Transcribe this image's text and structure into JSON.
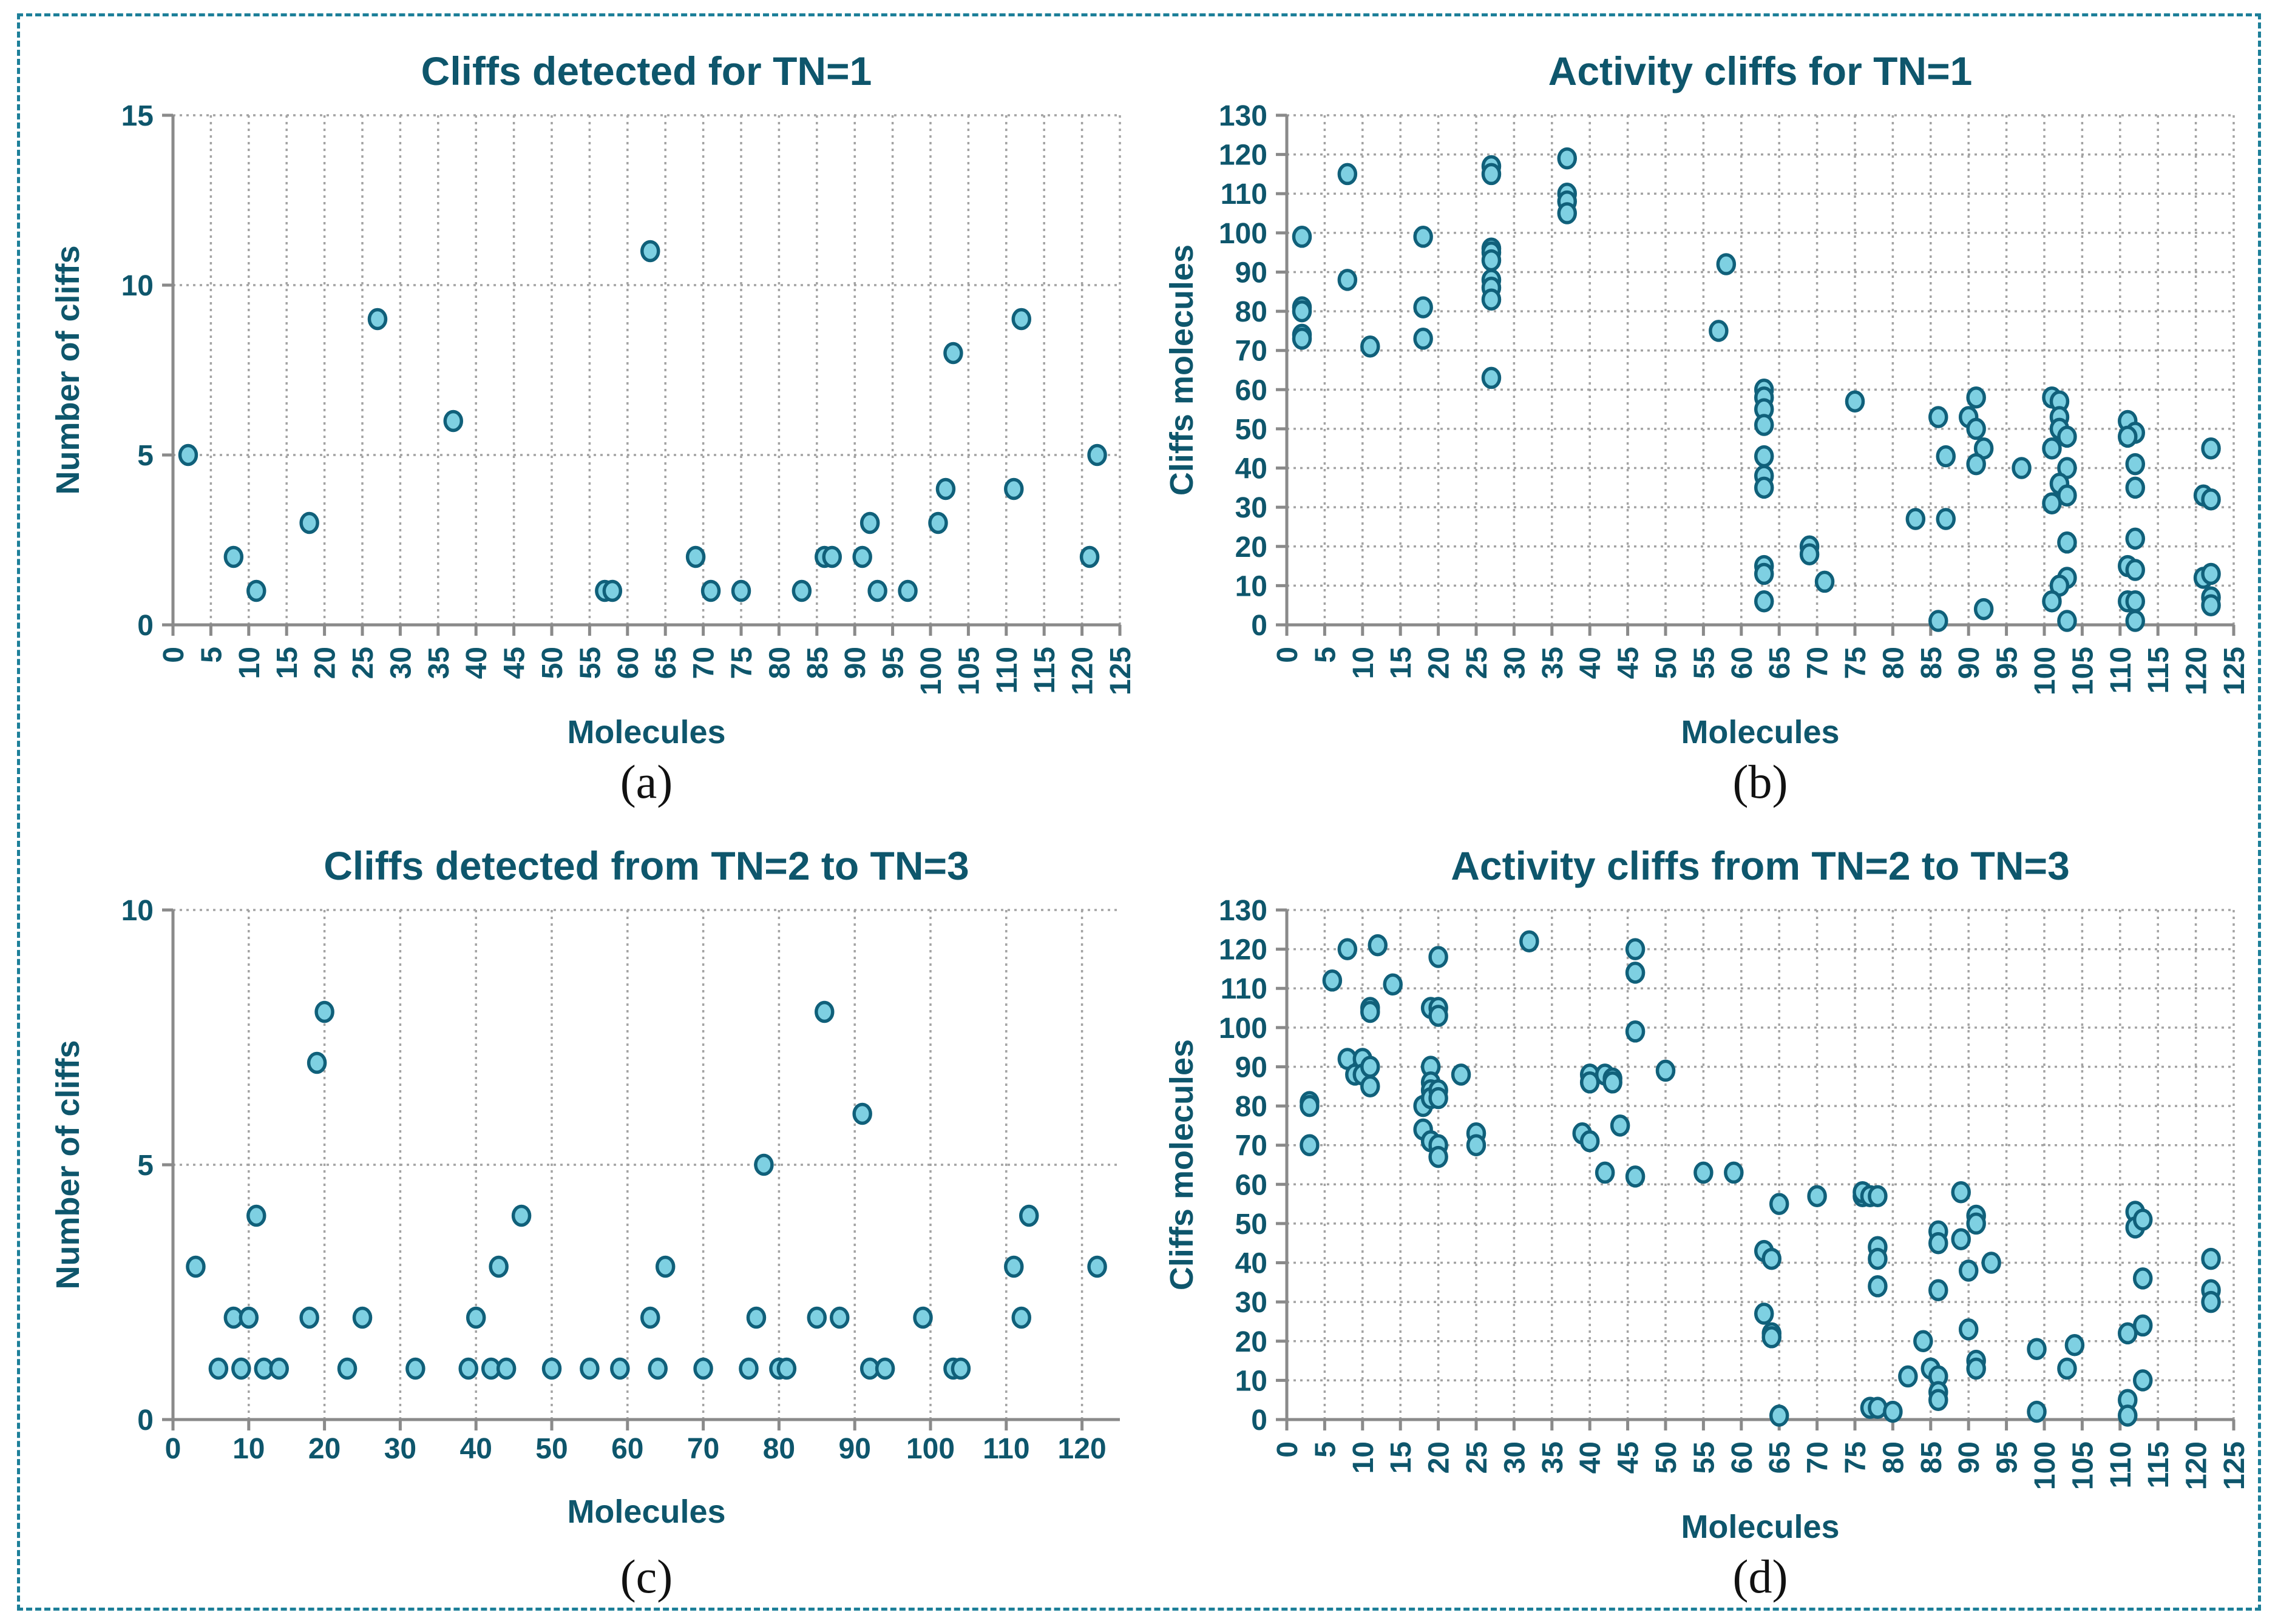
{
  "figure": {
    "border_color": "#1d7f99",
    "background_color": "#ffffff",
    "text_color": "#0e566c",
    "marker_fill": "#7ed0e2",
    "marker_stroke": "#10607a",
    "grid_color": "#a3a3a3",
    "axis_color": "#8a8a8a"
  },
  "chart_data": [
    {
      "type": "scatter",
      "title": "Cliffs detected for TN=1",
      "xlabel": "Molecules",
      "ylabel": "Number of cliffs",
      "caption": "(a)",
      "xlim": [
        0,
        125
      ],
      "ylim": [
        0,
        15
      ],
      "xticks_step": 5,
      "xticks_max": 125,
      "xtick_labels_rotated": true,
      "yticks": [
        0,
        5,
        10,
        15
      ],
      "grid_x_step": 5,
      "grid_y_vals": [
        5,
        10,
        15
      ],
      "grid": "dotted",
      "legend": "none",
      "points": [
        [
          2,
          5
        ],
        [
          8,
          2
        ],
        [
          11,
          1
        ],
        [
          18,
          3
        ],
        [
          27,
          9
        ],
        [
          37,
          6
        ],
        [
          57,
          1
        ],
        [
          58,
          1
        ],
        [
          63,
          11
        ],
        [
          69,
          2
        ],
        [
          71,
          1
        ],
        [
          75,
          1
        ],
        [
          83,
          1
        ],
        [
          86,
          2
        ],
        [
          87,
          2
        ],
        [
          91,
          2
        ],
        [
          92,
          3
        ],
        [
          93,
          1
        ],
        [
          97,
          1
        ],
        [
          101,
          3
        ],
        [
          102,
          4
        ],
        [
          103,
          8
        ],
        [
          111,
          4
        ],
        [
          112,
          9
        ],
        [
          121,
          2
        ],
        [
          122,
          5
        ]
      ]
    },
    {
      "type": "scatter",
      "title": "Activity cliffs for TN=1",
      "xlabel": "Molecules",
      "ylabel": "Cliffs molecules",
      "caption": "(b)",
      "xlim": [
        0,
        125
      ],
      "ylim": [
        0,
        130
      ],
      "xticks_step": 5,
      "xticks_max": 125,
      "xtick_labels_rotated": true,
      "yticks": [
        0,
        10,
        20,
        30,
        40,
        50,
        60,
        70,
        80,
        90,
        100,
        110,
        120,
        130
      ],
      "grid_x_step": 5,
      "grid_y_vals": [
        10,
        20,
        30,
        40,
        50,
        60,
        70,
        80,
        90,
        100,
        110,
        120,
        130
      ],
      "grid": "dotted",
      "legend": "none",
      "points": [
        [
          2,
          99
        ],
        [
          2,
          81
        ],
        [
          2,
          80
        ],
        [
          2,
          74
        ],
        [
          2,
          73
        ],
        [
          8,
          115
        ],
        [
          8,
          88
        ],
        [
          11,
          71
        ],
        [
          18,
          99
        ],
        [
          18,
          81
        ],
        [
          18,
          73
        ],
        [
          27,
          117
        ],
        [
          27,
          115
        ],
        [
          27,
          96
        ],
        [
          27,
          95
        ],
        [
          27,
          93
        ],
        [
          27,
          88
        ],
        [
          27,
          86
        ],
        [
          27,
          83
        ],
        [
          27,
          63
        ],
        [
          37,
          119
        ],
        [
          37,
          110
        ],
        [
          37,
          108
        ],
        [
          37,
          105
        ],
        [
          57,
          75
        ],
        [
          58,
          92
        ],
        [
          63,
          60
        ],
        [
          63,
          58
        ],
        [
          63,
          55
        ],
        [
          63,
          51
        ],
        [
          63,
          43
        ],
        [
          63,
          38
        ],
        [
          63,
          35
        ],
        [
          63,
          15
        ],
        [
          63,
          13
        ],
        [
          63,
          6
        ],
        [
          69,
          20
        ],
        [
          69,
          18
        ],
        [
          71,
          11
        ],
        [
          75,
          57
        ],
        [
          83,
          27
        ],
        [
          86,
          53
        ],
        [
          86,
          1
        ],
        [
          87,
          43
        ],
        [
          87,
          27
        ],
        [
          90,
          53
        ],
        [
          91,
          58
        ],
        [
          91,
          50
        ],
        [
          92,
          45
        ],
        [
          91,
          41
        ],
        [
          92,
          4
        ],
        [
          97,
          40
        ],
        [
          101,
          58
        ],
        [
          102,
          57
        ],
        [
          102,
          53
        ],
        [
          102,
          50
        ],
        [
          103,
          48
        ],
        [
          101,
          45
        ],
        [
          103,
          40
        ],
        [
          102,
          36
        ],
        [
          103,
          33
        ],
        [
          101,
          31
        ],
        [
          103,
          21
        ],
        [
          103,
          12
        ],
        [
          102,
          10
        ],
        [
          101,
          6
        ],
        [
          103,
          1
        ],
        [
          111,
          52
        ],
        [
          112,
          49
        ],
        [
          111,
          48
        ],
        [
          112,
          41
        ],
        [
          112,
          35
        ],
        [
          112,
          22
        ],
        [
          111,
          15
        ],
        [
          112,
          14
        ],
        [
          111,
          6
        ],
        [
          112,
          6
        ],
        [
          112,
          1
        ],
        [
          122,
          45
        ],
        [
          121,
          33
        ],
        [
          122,
          32
        ],
        [
          121,
          12
        ],
        [
          122,
          13
        ],
        [
          122,
          7
        ],
        [
          122,
          5
        ]
      ]
    },
    {
      "type": "scatter",
      "title": "Cliffs detected from TN=2 to TN=3",
      "xlabel": "Molecules",
      "ylabel": "Number of cliffs",
      "caption": "(c)",
      "xlim": [
        0,
        125
      ],
      "ylim": [
        0,
        10
      ],
      "xticks_step": 10,
      "xticks_max": 120,
      "xtick_labels_rotated": false,
      "yticks": [
        0,
        5,
        10
      ],
      "grid_x_step": 10,
      "grid_y_vals": [
        5,
        10
      ],
      "grid": "dotted",
      "legend": "none",
      "points": [
        [
          3,
          3
        ],
        [
          6,
          1
        ],
        [
          8,
          2
        ],
        [
          9,
          1
        ],
        [
          10,
          2
        ],
        [
          11,
          4
        ],
        [
          12,
          1
        ],
        [
          14,
          1
        ],
        [
          18,
          2
        ],
        [
          19,
          7
        ],
        [
          20,
          8
        ],
        [
          23,
          1
        ],
        [
          25,
          2
        ],
        [
          32,
          1
        ],
        [
          39,
          1
        ],
        [
          40,
          2
        ],
        [
          42,
          1
        ],
        [
          43,
          3
        ],
        [
          44,
          1
        ],
        [
          46,
          4
        ],
        [
          50,
          1
        ],
        [
          55,
          1
        ],
        [
          59,
          1
        ],
        [
          63,
          2
        ],
        [
          64,
          1
        ],
        [
          65,
          3
        ],
        [
          70,
          1
        ],
        [
          76,
          1
        ],
        [
          77,
          2
        ],
        [
          78,
          5
        ],
        [
          80,
          1
        ],
        [
          81,
          1
        ],
        [
          85,
          2
        ],
        [
          86,
          8
        ],
        [
          88,
          2
        ],
        [
          91,
          6
        ],
        [
          92,
          1
        ],
        [
          94,
          1
        ],
        [
          99,
          2
        ],
        [
          103,
          1
        ],
        [
          104,
          1
        ],
        [
          111,
          3
        ],
        [
          112,
          2
        ],
        [
          113,
          4
        ],
        [
          122,
          3
        ]
      ]
    },
    {
      "type": "scatter",
      "title": "Activity cliffs from TN=2 to TN=3",
      "xlabel": "Molecules",
      "ylabel": "Cliffs molecules",
      "caption": "(d)",
      "xlim": [
        0,
        125
      ],
      "ylim": [
        0,
        130
      ],
      "xticks_step": 5,
      "xticks_max": 125,
      "xtick_labels_rotated": true,
      "yticks": [
        0,
        10,
        20,
        30,
        40,
        50,
        60,
        70,
        80,
        90,
        100,
        110,
        120,
        130
      ],
      "grid_x_step": 5,
      "grid_y_vals": [
        10,
        20,
        30,
        40,
        50,
        60,
        70,
        80,
        90,
        100,
        110,
        120,
        130
      ],
      "grid": "dotted",
      "legend": "none",
      "points": [
        [
          3,
          81
        ],
        [
          3,
          80
        ],
        [
          3,
          70
        ],
        [
          6,
          112
        ],
        [
          8,
          120
        ],
        [
          8,
          92
        ],
        [
          9,
          88
        ],
        [
          10,
          92
        ],
        [
          10,
          88
        ],
        [
          11,
          90
        ],
        [
          11,
          85
        ],
        [
          11,
          105
        ],
        [
          11,
          104
        ],
        [
          12,
          121
        ],
        [
          14,
          111
        ],
        [
          18,
          80
        ],
        [
          18,
          74
        ],
        [
          19,
          90
        ],
        [
          19,
          86
        ],
        [
          19,
          84
        ],
        [
          19,
          82
        ],
        [
          19,
          71
        ],
        [
          19,
          105
        ],
        [
          20,
          118
        ],
        [
          20,
          105
        ],
        [
          20,
          103
        ],
        [
          20,
          84
        ],
        [
          20,
          82
        ],
        [
          20,
          70
        ],
        [
          20,
          67
        ],
        [
          23,
          88
        ],
        [
          25,
          73
        ],
        [
          25,
          70
        ],
        [
          32,
          122
        ],
        [
          39,
          73
        ],
        [
          40,
          71
        ],
        [
          40,
          88
        ],
        [
          40,
          86
        ],
        [
          42,
          88
        ],
        [
          43,
          87
        ],
        [
          43,
          86
        ],
        [
          42,
          63
        ],
        [
          44,
          75
        ],
        [
          46,
          120
        ],
        [
          46,
          114
        ],
        [
          46,
          99
        ],
        [
          46,
          62
        ],
        [
          50,
          89
        ],
        [
          55,
          63
        ],
        [
          59,
          63
        ],
        [
          63,
          43
        ],
        [
          64,
          41
        ],
        [
          63,
          27
        ],
        [
          64,
          22
        ],
        [
          64,
          21
        ],
        [
          65,
          1
        ],
        [
          65,
          55
        ],
        [
          70,
          57
        ],
        [
          76,
          57
        ],
        [
          76,
          58
        ],
        [
          77,
          57
        ],
        [
          78,
          57
        ],
        [
          78,
          44
        ],
        [
          78,
          41
        ],
        [
          78,
          34
        ],
        [
          77,
          3
        ],
        [
          78,
          3
        ],
        [
          80,
          2
        ],
        [
          82,
          11
        ],
        [
          84,
          20
        ],
        [
          86,
          48
        ],
        [
          86,
          45
        ],
        [
          86,
          33
        ],
        [
          85,
          13
        ],
        [
          86,
          11
        ],
        [
          86,
          7
        ],
        [
          86,
          5
        ],
        [
          89,
          58
        ],
        [
          89,
          46
        ],
        [
          90,
          38
        ],
        [
          90,
          23
        ],
        [
          91,
          52
        ],
        [
          91,
          50
        ],
        [
          91,
          15
        ],
        [
          91,
          13
        ],
        [
          93,
          40
        ],
        [
          99,
          18
        ],
        [
          99,
          2
        ],
        [
          103,
          13
        ],
        [
          104,
          19
        ],
        [
          111,
          22
        ],
        [
          111,
          5
        ],
        [
          111,
          1
        ],
        [
          112,
          53
        ],
        [
          112,
          49
        ],
        [
          113,
          51
        ],
        [
          113,
          36
        ],
        [
          113,
          24
        ],
        [
          113,
          10
        ],
        [
          122,
          41
        ],
        [
          122,
          33
        ],
        [
          122,
          30
        ]
      ]
    }
  ]
}
